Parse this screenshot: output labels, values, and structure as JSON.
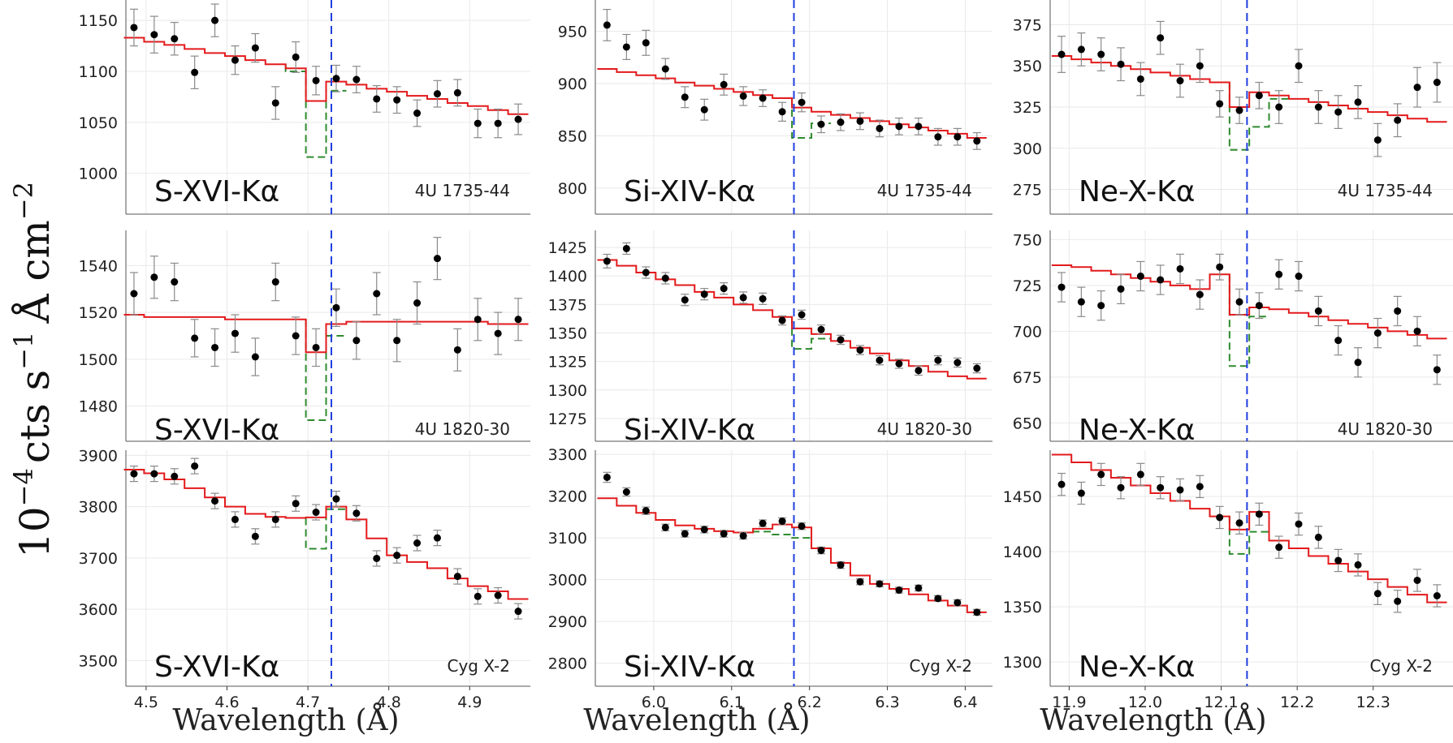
{
  "figure": {
    "ylabel": "10^-4 cts s^-1 Å cm^-2",
    "ylabel_main": "cts s",
    "ylabel_prefix": "10",
    "ylabel_prefix_exp": "−4",
    "ylabel_s_exp": "−1",
    "ylabel_unit": "Å cm",
    "ylabel_cm_exp": "−2",
    "xlabel": "Wavelength (Å)"
  },
  "colors": {
    "model": "#e31a1c",
    "absorption_model": "#2e8b2e",
    "rest_line": "#1f3fe0",
    "data": "#000000",
    "errorbar": "#8a8a8a",
    "grid": "#e9e9e9"
  },
  "chart_data": [
    {
      "type": "scatter",
      "line": "S-XVI-Kα",
      "source": "4U 1735-44",
      "ylim": [
        960,
        1170
      ],
      "yticks": [
        1000,
        1050,
        1100,
        1150
      ],
      "xlim": [
        4.475,
        4.975
      ],
      "rest_wavelength": 4.729,
      "x": [
        4.485,
        4.51,
        4.535,
        4.56,
        4.585,
        4.61,
        4.635,
        4.66,
        4.685,
        4.71,
        4.735,
        4.76,
        4.785,
        4.81,
        4.835,
        4.86,
        4.885,
        4.91,
        4.935,
        4.96
      ],
      "y": [
        1143,
        1136,
        1132,
        1099,
        1150,
        1111,
        1123,
        1069,
        1114,
        1091,
        1093,
        1092,
        1073,
        1072,
        1059,
        1078,
        1079,
        1049,
        1049,
        1053
      ],
      "yerr": [
        18,
        18,
        16,
        16,
        16,
        14,
        14,
        16,
        15,
        14,
        13,
        13,
        13,
        13,
        13,
        13,
        13,
        14,
        14,
        15
      ],
      "model": [
        1133,
        1129,
        1126,
        1122,
        1118,
        1115,
        1111,
        1107,
        1103,
        1071,
        1090,
        1087,
        1083,
        1080,
        1076,
        1073,
        1069,
        1066,
        1062,
        1058
      ],
      "absorbed_model": [
        null,
        null,
        null,
        null,
        null,
        null,
        null,
        null,
        1100,
        1016,
        1081,
        null,
        null,
        null,
        null,
        null,
        null,
        null,
        null,
        null
      ]
    },
    {
      "type": "scatter",
      "line": "Si-XIV-Kα",
      "source": "4U 1735-44",
      "ylim": [
        775,
        980
      ],
      "yticks": [
        800,
        850,
        900,
        950
      ],
      "xlim": [
        5.925,
        6.435
      ],
      "rest_wavelength": 6.18,
      "x": [
        5.94,
        5.965,
        5.99,
        6.015,
        6.04,
        6.065,
        6.09,
        6.115,
        6.14,
        6.165,
        6.19,
        6.215,
        6.24,
        6.265,
        6.29,
        6.315,
        6.34,
        6.365,
        6.39,
        6.415
      ],
      "y": [
        956,
        935,
        939,
        914,
        887,
        875,
        899,
        888,
        886,
        873,
        882,
        861,
        863,
        864,
        857,
        859,
        859,
        849,
        849,
        845
      ],
      "yerr": [
        15,
        12,
        12,
        10,
        10,
        10,
        10,
        9,
        8,
        9,
        9,
        8,
        8,
        8,
        8,
        8,
        8,
        8,
        8,
        8
      ],
      "model": [
        914,
        911,
        908,
        905,
        901,
        898,
        895,
        892,
        889,
        886,
        877,
        873,
        870,
        867,
        864,
        861,
        858,
        855,
        852,
        848
      ],
      "absorbed_model": [
        null,
        null,
        null,
        null,
        null,
        null,
        null,
        null,
        null,
        null,
        848,
        862,
        null,
        null,
        null,
        null,
        null,
        null,
        null,
        null
      ]
    },
    {
      "type": "scatter",
      "line": "Ne-X-Kα",
      "source": "4U 1735-44",
      "ylim": [
        260,
        390
      ],
      "yticks": [
        275,
        300,
        325,
        350,
        375
      ],
      "xlim": [
        11.875,
        12.405
      ],
      "rest_wavelength": 12.134,
      "x": [
        11.89,
        11.916,
        11.942,
        11.968,
        11.994,
        12.02,
        12.046,
        12.072,
        12.098,
        12.124,
        12.15,
        12.176,
        12.202,
        12.228,
        12.254,
        12.28,
        12.306,
        12.332,
        12.358,
        12.384
      ],
      "y": [
        357,
        360,
        357,
        351,
        342,
        367,
        341,
        350,
        327,
        323,
        332,
        325,
        350,
        325,
        322,
        328,
        305,
        317,
        337,
        340
      ],
      "yerr": [
        11,
        10,
        10,
        10,
        10,
        10,
        10,
        10,
        8,
        8,
        8,
        10,
        10,
        10,
        10,
        10,
        10,
        10,
        12,
        12
      ],
      "model": [
        356,
        354,
        352,
        350,
        348,
        346,
        344,
        342,
        340,
        325,
        334,
        332,
        330,
        328,
        326,
        324,
        322,
        320,
        318,
        316
      ],
      "absorbed_model": [
        null,
        null,
        null,
        null,
        null,
        null,
        null,
        null,
        null,
        299,
        313,
        330,
        null,
        null,
        null,
        null,
        null,
        null,
        null,
        null
      ]
    },
    {
      "type": "scatter",
      "line": "S-XVI-Kα",
      "source": "4U 1820-30",
      "ylim": [
        1465,
        1555
      ],
      "yticks": [
        1480,
        1500,
        1520,
        1540
      ],
      "xlim": [
        4.475,
        4.975
      ],
      "rest_wavelength": 4.729,
      "x": [
        4.485,
        4.51,
        4.535,
        4.56,
        4.585,
        4.61,
        4.635,
        4.66,
        4.685,
        4.71,
        4.735,
        4.76,
        4.785,
        4.81,
        4.835,
        4.86,
        4.885,
        4.91,
        4.935,
        4.96
      ],
      "y": [
        1528,
        1535,
        1533,
        1509,
        1505,
        1511,
        1501,
        1533,
        1510,
        1505,
        1522,
        1508,
        1528,
        1508,
        1524,
        1543,
        1504,
        1517,
        1511,
        1517
      ],
      "yerr": [
        9,
        9,
        8,
        8,
        8,
        8,
        8,
        8,
        8,
        8,
        8,
        8,
        9,
        9,
        9,
        9,
        9,
        9,
        9,
        9
      ],
      "model": [
        1519,
        1518,
        1518,
        1518,
        1518,
        1517,
        1517,
        1517,
        1517,
        1503,
        1515,
        1516,
        1516,
        1516,
        1516,
        1516,
        1516,
        1516,
        1515,
        1515
      ],
      "absorbed_model": [
        null,
        null,
        null,
        null,
        null,
        null,
        null,
        null,
        null,
        1474,
        1510,
        null,
        null,
        null,
        null,
        null,
        null,
        null,
        null,
        null
      ]
    },
    {
      "type": "scatter",
      "line": "Si-XIV-Kα",
      "source": "4U 1820-30",
      "ylim": [
        1255,
        1440
      ],
      "yticks": [
        1275,
        1300,
        1325,
        1350,
        1375,
        1400,
        1425
      ],
      "xlim": [
        5.925,
        6.435
      ],
      "rest_wavelength": 6.18,
      "x": [
        5.94,
        5.965,
        5.99,
        6.015,
        6.04,
        6.065,
        6.09,
        6.115,
        6.14,
        6.165,
        6.19,
        6.215,
        6.24,
        6.265,
        6.29,
        6.315,
        6.34,
        6.365,
        6.39,
        6.415
      ],
      "y": [
        1413,
        1424,
        1403,
        1398,
        1379,
        1384,
        1389,
        1381,
        1380,
        1361,
        1366,
        1353,
        1344,
        1335,
        1326,
        1323,
        1317,
        1326,
        1324,
        1319
      ],
      "yerr": [
        6,
        5,
        5,
        5,
        5,
        5,
        5,
        5,
        5,
        4,
        4,
        4,
        4,
        4,
        4,
        4,
        4,
        4,
        4,
        4
      ],
      "model": [
        1414,
        1409,
        1403,
        1397,
        1392,
        1386,
        1381,
        1375,
        1370,
        1364,
        1354,
        1349,
        1343,
        1337,
        1332,
        1326,
        1321,
        1316,
        1312,
        1310
      ],
      "absorbed_model": [
        null,
        null,
        null,
        null,
        null,
        null,
        null,
        null,
        null,
        null,
        1336,
        1345,
        null,
        null,
        null,
        null,
        null,
        null,
        null,
        null
      ]
    },
    {
      "type": "scatter",
      "line": "Ne-X-Kα",
      "source": "4U 1820-30",
      "ylim": [
        640,
        755
      ],
      "yticks": [
        650,
        675,
        700,
        725,
        750
      ],
      "xlim": [
        11.875,
        12.405
      ],
      "rest_wavelength": 12.134,
      "x": [
        11.89,
        11.916,
        11.942,
        11.968,
        11.994,
        12.02,
        12.046,
        12.072,
        12.098,
        12.124,
        12.15,
        12.176,
        12.202,
        12.228,
        12.254,
        12.28,
        12.306,
        12.332,
        12.358,
        12.384
      ],
      "y": [
        724,
        716,
        714,
        723,
        730,
        728,
        734,
        720,
        735,
        716,
        714,
        731,
        730,
        711,
        695,
        683,
        699,
        711,
        700,
        679
      ],
      "yerr": [
        8,
        8,
        8,
        8,
        8,
        8,
        8,
        8,
        7,
        7,
        7,
        8,
        8,
        8,
        8,
        8,
        8,
        8,
        8,
        8
      ],
      "model": [
        736,
        735,
        733,
        731,
        729,
        727,
        725,
        723,
        731,
        709,
        713,
        712,
        710,
        708,
        706,
        704,
        702,
        700,
        698,
        696
      ],
      "absorbed_model": [
        null,
        null,
        null,
        null,
        null,
        null,
        null,
        null,
        null,
        681,
        708,
        null,
        null,
        null,
        null,
        null,
        null,
        null,
        null,
        null
      ]
    },
    {
      "type": "scatter",
      "line": "S-XVI-Kα",
      "source": "Cyg X-2",
      "ylim": [
        3450,
        3910
      ],
      "yticks": [
        3500,
        3600,
        3700,
        3800,
        3900
      ],
      "xlim": [
        4.475,
        4.975
      ],
      "rest_wavelength": 4.729,
      "x": [
        4.485,
        4.51,
        4.535,
        4.56,
        4.585,
        4.61,
        4.635,
        4.66,
        4.685,
        4.71,
        4.735,
        4.76,
        4.785,
        4.81,
        4.835,
        4.86,
        4.885,
        4.91,
        4.935,
        4.96
      ],
      "y": [
        3864,
        3864,
        3859,
        3879,
        3811,
        3775,
        3742,
        3775,
        3806,
        3789,
        3815,
        3787,
        3699,
        3705,
        3729,
        3739,
        3664,
        3625,
        3627,
        3596
      ],
      "yerr": [
        15,
        15,
        15,
        15,
        15,
        15,
        15,
        15,
        15,
        15,
        15,
        15,
        15,
        15,
        15,
        15,
        15,
        15,
        15,
        15
      ],
      "model": [
        3872,
        3865,
        3853,
        3836,
        3818,
        3800,
        3786,
        3780,
        3778,
        3779,
        3800,
        3775,
        3738,
        3705,
        3692,
        3680,
        3660,
        3645,
        3635,
        3620
      ],
      "absorbed_model": [
        null,
        null,
        null,
        null,
        null,
        null,
        null,
        null,
        null,
        3718,
        3795,
        null,
        null,
        null,
        null,
        null,
        null,
        null,
        null,
        null
      ]
    },
    {
      "type": "scatter",
      "line": "Si-XIV-Kα",
      "source": "Cyg X-2",
      "ylim": [
        2745,
        3310
      ],
      "yticks": [
        2800,
        2900,
        3000,
        3100,
        3200,
        3300
      ],
      "xlim": [
        5.925,
        6.435
      ],
      "rest_wavelength": 6.18,
      "x": [
        5.94,
        5.965,
        5.99,
        6.015,
        6.04,
        6.065,
        6.09,
        6.115,
        6.14,
        6.165,
        6.19,
        6.215,
        6.24,
        6.265,
        6.29,
        6.315,
        6.34,
        6.365,
        6.39,
        6.415
      ],
      "y": [
        3245,
        3210,
        3165,
        3125,
        3110,
        3120,
        3110,
        3105,
        3135,
        3140,
        3128,
        3070,
        3035,
        2995,
        2990,
        2975,
        2980,
        2955,
        2945,
        2922
      ],
      "yerr": [
        12,
        10,
        9,
        8,
        8,
        8,
        8,
        8,
        8,
        8,
        8,
        8,
        8,
        7,
        7,
        7,
        7,
        7,
        7,
        7
      ],
      "model": [
        3195,
        3177,
        3160,
        3143,
        3130,
        3122,
        3116,
        3113,
        3122,
        3132,
        3125,
        3075,
        3040,
        3010,
        2990,
        2978,
        2965,
        2950,
        2938,
        2922
      ],
      "absorbed_model": [
        null,
        null,
        null,
        null,
        null,
        null,
        null,
        null,
        3115,
        3108,
        3100,
        null,
        null,
        null,
        null,
        null,
        null,
        null,
        null,
        null
      ]
    },
    {
      "type": "scatter",
      "line": "Ne-X-Kα",
      "source": "Cyg X-2",
      "ylim": [
        1278,
        1492
      ],
      "yticks": [
        1300,
        1350,
        1400,
        1450
      ],
      "xlim": [
        11.875,
        12.405
      ],
      "rest_wavelength": 12.134,
      "x": [
        11.89,
        11.916,
        11.942,
        11.968,
        11.994,
        12.02,
        12.046,
        12.072,
        12.098,
        12.124,
        12.15,
        12.176,
        12.202,
        12.228,
        12.254,
        12.28,
        12.306,
        12.332,
        12.358,
        12.384
      ],
      "y": [
        1461,
        1453,
        1470,
        1458,
        1470,
        1458,
        1456,
        1459,
        1431,
        1426,
        1434,
        1404,
        1425,
        1413,
        1392,
        1388,
        1362,
        1355,
        1374,
        1360
      ],
      "yerr": [
        10,
        10,
        10,
        10,
        10,
        10,
        10,
        10,
        10,
        10,
        10,
        10,
        10,
        10,
        10,
        10,
        10,
        10,
        10,
        10
      ],
      "model": [
        1488,
        1481,
        1474,
        1467,
        1460,
        1453,
        1446,
        1439,
        1432,
        1420,
        1436,
        1410,
        1403,
        1396,
        1389,
        1382,
        1375,
        1368,
        1361,
        1354
      ],
      "absorbed_model": [
        null,
        null,
        null,
        null,
        null,
        null,
        null,
        null,
        null,
        1398,
        1418,
        null,
        null,
        null,
        null,
        null,
        null,
        null,
        null,
        null
      ]
    }
  ]
}
